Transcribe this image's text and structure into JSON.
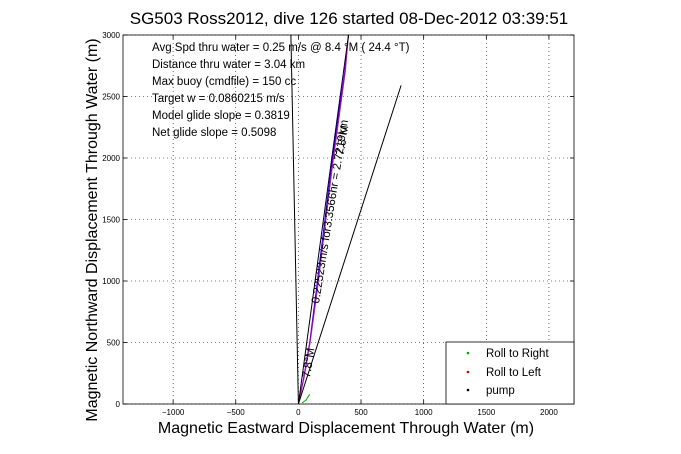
{
  "chart_data": {
    "type": "line",
    "title": "SG503 Ross2012, dive 126 started 08-Dec-2012 03:39:51",
    "xlabel": "Magnetic Eastward Displacement Through Water (m)",
    "ylabel": "Magnetic Northward Displacement Through Water (m)",
    "xlim": [
      -1400,
      2200
    ],
    "ylim": [
      0,
      3000
    ],
    "xticks": [
      -1000,
      -500,
      0,
      500,
      1000,
      1500,
      2000
    ],
    "yticks": [
      0,
      500,
      1000,
      1500,
      2000,
      2500,
      3000
    ],
    "xtick_labels": [
      "−1000",
      "−500",
      "0",
      "500",
      "1000",
      "1500",
      "2000"
    ],
    "ytick_labels": [
      "0",
      "500",
      "1000",
      "1500",
      "2000",
      "2500",
      "3000"
    ],
    "grid": true,
    "annotations": [
      "Avg Spd thru water =  0.25 m/s @   8.4   °M ( 24.4 °T)",
      "Distance thru water = 3.04 km",
      "Max buoy (cmdfile) = 150 cc",
      "Target w = 0.0860215 m/s",
      "Model glide slope = 0.3819",
      "Net glide slope = 0.5098"
    ],
    "rotated_labels": [
      {
        "text": "0.22523m/s for3.3566hr = 2.7219km",
        "x": 280,
        "y": 1560
      },
      {
        "text": "7.8°M",
        "x": 380,
        "y": 2140
      },
      {
        "text": "7.8°M",
        "x": 110,
        "y": 330
      }
    ],
    "legend": {
      "position": "bottom-right",
      "entries": [
        {
          "label": "Roll to Right",
          "color": "#00aa00",
          "marker": "dot"
        },
        {
          "label": "Roll to Left",
          "color": "#dd0000",
          "marker": "dot"
        },
        {
          "label": "pump",
          "color": "#000000",
          "marker": "dot"
        }
      ]
    },
    "series": [
      {
        "color": "#0000ff",
        "x": [
          0,
          40,
          90,
          140,
          200,
          260,
          320,
          370,
          400
        ],
        "y": [
          0,
          200,
          500,
          900,
          1400,
          1900,
          2350,
          2700,
          3000
        ]
      },
      {
        "color": "#cc00cc",
        "x": [
          0,
          45,
          95,
          150,
          210,
          270,
          330,
          375,
          400
        ],
        "y": [
          0,
          210,
          510,
          920,
          1420,
          1920,
          2370,
          2710,
          3000
        ]
      },
      {
        "color": "#000000",
        "x": [
          0,
          400
        ],
        "y": [
          0,
          3000
        ]
      },
      {
        "color": "#000000",
        "x": [
          0,
          820
        ],
        "y": [
          0,
          2590
        ]
      },
      {
        "color": "#000000",
        "x": [
          0,
          -60
        ],
        "y": [
          0,
          3000
        ]
      },
      {
        "color": "#00aa00",
        "x": [
          30,
          60,
          90
        ],
        "y": [
          10,
          30,
          80
        ]
      }
    ]
  }
}
